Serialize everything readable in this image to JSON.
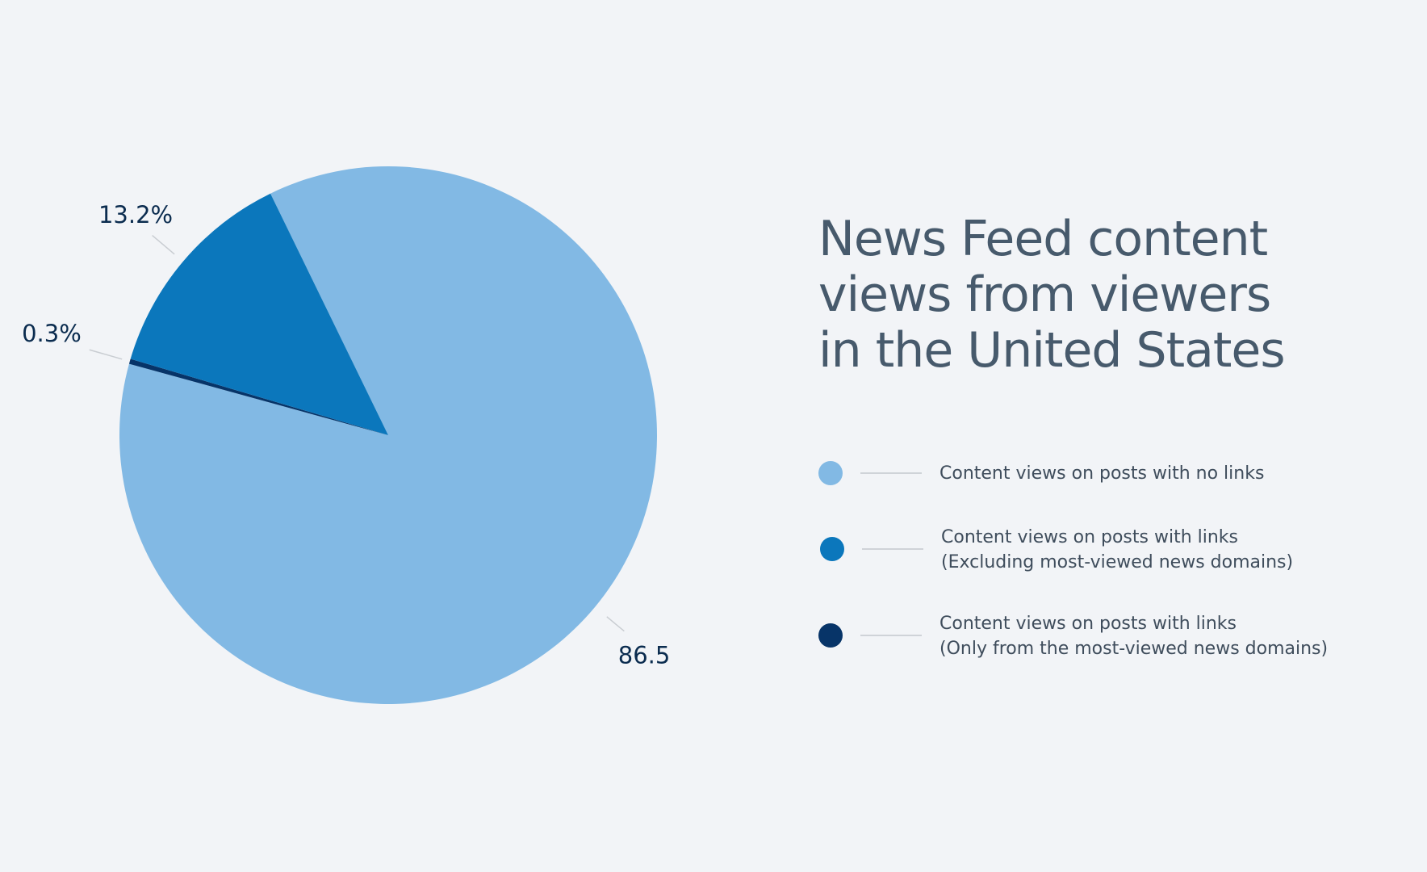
{
  "chart_data": {
    "type": "pie",
    "title_lines": [
      "News Feed content",
      "views from viewers",
      "in the United States"
    ],
    "slices": [
      {
        "label_lines": [
          "Content views on posts with no links"
        ],
        "value": 86.5,
        "value_label": "86.5%",
        "color": "#82b9e4"
      },
      {
        "label_lines": [
          "Content views on posts with links",
          "(Only from the most-viewed news domains)"
        ],
        "value": 0.3,
        "value_label": "0.3%",
        "color": "#073468"
      },
      {
        "label_lines": [
          "Content views on posts with links",
          "(Excluding most-viewed news domains)"
        ],
        "value": 13.2,
        "value_label": "13.2%",
        "color": "#0b77bc"
      }
    ],
    "legend_order": [
      0,
      2,
      1
    ]
  },
  "colors": {
    "background": "#f2f4f7",
    "title": "#475a6c",
    "value_label": "#0b2c4f",
    "leader_line": "#c9cdd2"
  }
}
